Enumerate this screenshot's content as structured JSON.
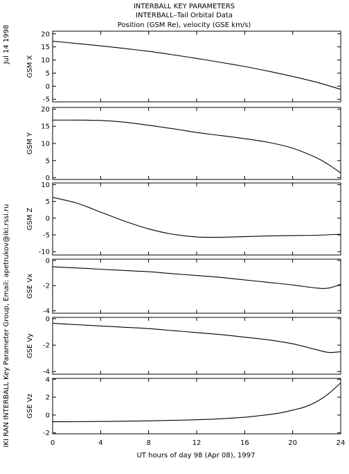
{
  "header": {
    "line1": "INTERBALL KEY PARAMETERS",
    "line2": "INTERBALL–Tail Orbital Data",
    "line3": "Position (GSM Re), velocity (GSE km/s)"
  },
  "side_date": "Jul 14 1998",
  "side_credit": "IKI RAN INTERBALL Key Parameter Group, Email: apetrukov@iki.rssi.ru",
  "chart_data": {
    "type": "line",
    "xlabel": "UT hours of day  98 (Apr 08), 1997",
    "xlim": [
      0,
      24
    ],
    "xticks": [
      0,
      4,
      8,
      12,
      16,
      20,
      24
    ],
    "xtick_labels": [
      "0",
      "4",
      "8",
      "12",
      "16",
      "20",
      "24"
    ],
    "panels": [
      {
        "ylabel": "GSM X",
        "ylim": [
          -6,
          21
        ],
        "yticks": [
          -5,
          0,
          5,
          10,
          15,
          20
        ],
        "ytick_labels": [
          "-5",
          "0",
          "5",
          "10",
          "15",
          "20"
        ],
        "x": [
          0,
          2,
          4,
          6,
          8,
          10,
          12,
          14,
          16,
          18,
          20,
          22,
          24
        ],
        "y": [
          17.2,
          16.3,
          15.4,
          14.4,
          13.3,
          12.0,
          10.6,
          9.1,
          7.5,
          5.7,
          3.7,
          1.5,
          -1.2
        ]
      },
      {
        "ylabel": "GSM Y",
        "ylim": [
          -0.5,
          20.5
        ],
        "yticks": [
          0,
          5,
          10,
          15,
          20
        ],
        "ytick_labels": [
          "0",
          "5",
          "10",
          "15",
          "20"
        ],
        "x": [
          0,
          2,
          4,
          6,
          8,
          10,
          12,
          14,
          16,
          18,
          20,
          22,
          23,
          24
        ],
        "y": [
          16.8,
          16.8,
          16.7,
          16.2,
          15.3,
          14.3,
          13.2,
          12.3,
          11.4,
          10.3,
          8.6,
          5.8,
          3.8,
          1.4
        ]
      },
      {
        "ylabel": "GSM Z",
        "ylim": [
          -11,
          10.5
        ],
        "yticks": [
          -10,
          -5,
          0,
          5,
          10
        ],
        "ytick_labels": [
          "-10",
          "-5",
          "0",
          "5",
          "10"
        ],
        "x": [
          0,
          2,
          4,
          6,
          8,
          10,
          12,
          14,
          16,
          18,
          20,
          22,
          24
        ],
        "y": [
          6.2,
          4.5,
          1.8,
          -0.9,
          -3.2,
          -4.8,
          -5.6,
          -5.7,
          -5.5,
          -5.3,
          -5.2,
          -5.1,
          -4.8
        ]
      },
      {
        "ylabel": "GSE Vx",
        "ylim": [
          -4.2,
          0.1
        ],
        "yticks": [
          -4,
          -2,
          0
        ],
        "ytick_labels": [
          "-4",
          "-2",
          "0"
        ],
        "x": [
          0,
          2,
          4,
          6,
          8,
          10,
          12,
          14,
          16,
          18,
          20,
          22,
          23,
          24
        ],
        "y": [
          -0.5,
          -0.6,
          -0.7,
          -0.8,
          -0.9,
          -1.05,
          -1.2,
          -1.35,
          -1.55,
          -1.75,
          -1.95,
          -2.2,
          -2.2,
          -1.9
        ]
      },
      {
        "ylabel": "GSE Vy",
        "ylim": [
          -4.2,
          0.1
        ],
        "yticks": [
          -4,
          -2,
          0
        ],
        "ytick_labels": [
          "-4",
          "-2",
          "0"
        ],
        "x": [
          0,
          2,
          4,
          6,
          8,
          10,
          12,
          14,
          16,
          18,
          20,
          22,
          23,
          24
        ],
        "y": [
          -0.35,
          -0.45,
          -0.55,
          -0.65,
          -0.75,
          -0.9,
          -1.05,
          -1.2,
          -1.4,
          -1.6,
          -1.9,
          -2.35,
          -2.55,
          -2.5
        ]
      },
      {
        "ylabel": "GSE Vz",
        "ylim": [
          -2.1,
          4.1
        ],
        "yticks": [
          -2,
          0,
          2,
          4
        ],
        "ytick_labels": [
          "-2",
          "0",
          "2",
          "4"
        ],
        "x": [
          0,
          2,
          4,
          6,
          8,
          10,
          12,
          14,
          16,
          18,
          19,
          20,
          21,
          22,
          23,
          24
        ],
        "y": [
          -0.75,
          -0.74,
          -0.72,
          -0.69,
          -0.65,
          -0.6,
          -0.53,
          -0.42,
          -0.25,
          0.05,
          0.25,
          0.55,
          0.9,
          1.5,
          2.4,
          3.6
        ]
      }
    ]
  }
}
